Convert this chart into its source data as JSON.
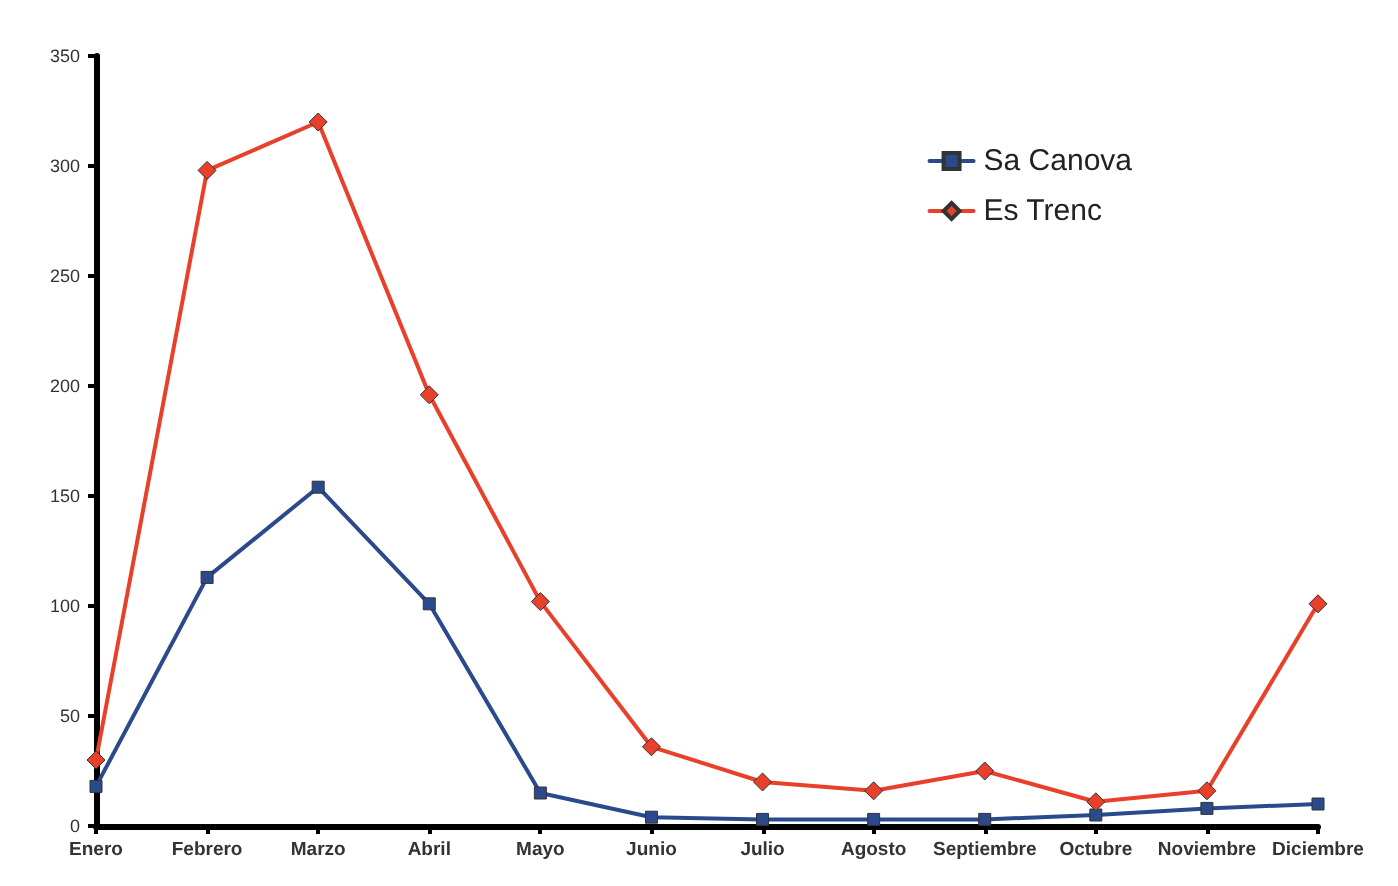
{
  "chart_data": {
    "type": "line",
    "categories": [
      "Enero",
      "Febrero",
      "Marzo",
      "Abril",
      "Mayo",
      "Junio",
      "Julio",
      "Agosto",
      "Septiembre",
      "Octubre",
      "Noviembre",
      "Diciembre"
    ],
    "series": [
      {
        "name": "Sa Canova",
        "color": "#2b4a8c",
        "marker": "square",
        "values": [
          18,
          113,
          154,
          101,
          15,
          4,
          3,
          3,
          3,
          5,
          8,
          10
        ]
      },
      {
        "name": "Es Trenc",
        "color": "#e8402a",
        "marker": "diamond",
        "values": [
          30,
          298,
          320,
          196,
          102,
          36,
          20,
          16,
          25,
          11,
          16,
          101
        ]
      }
    ],
    "ylim": [
      0,
      350
    ],
    "yticks": [
      0,
      50,
      100,
      150,
      200,
      250,
      300,
      350
    ],
    "grid": false,
    "legend": "top right",
    "line_style": "solid"
  }
}
